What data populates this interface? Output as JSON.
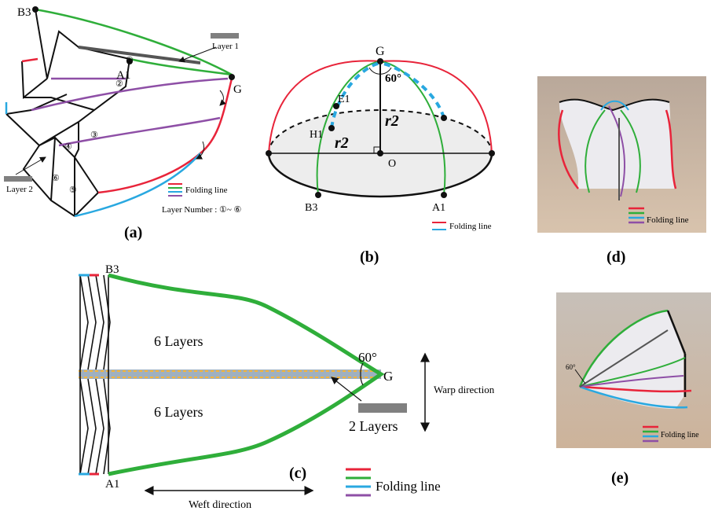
{
  "panels": {
    "a": {
      "caption": "(a)",
      "points": {
        "B3": "B3",
        "A1": "A1",
        "G": "G"
      },
      "layer_callouts": {
        "layer1": "Layer 1",
        "layer2": "Layer 2"
      },
      "layer_marks": [
        "①",
        "②",
        "③",
        "④",
        "⑤",
        "⑥"
      ],
      "legend_label": "Folding line",
      "layer_number": "Layer Number : ①~ ⑥"
    },
    "b": {
      "caption": "(b)",
      "points": {
        "G": "G",
        "E1": "E1",
        "H1": "H1",
        "O": "O",
        "B3": "B3",
        "A1": "A1"
      },
      "angle": "60°",
      "radius_label": "r2",
      "legend_label": "Folding line"
    },
    "c": {
      "caption": "(c)",
      "points": {
        "B3": "B3",
        "A1": "A1",
        "G": "G"
      },
      "top_layers": "6 Layers",
      "bottom_layers": "6 Layers",
      "center_layers": "2 Layers",
      "angle": "60°",
      "warp_direction": "Warp direction",
      "weft_direction": "Weft direction",
      "legend_label": "Folding line"
    },
    "d": {
      "caption": "(d)",
      "legend_label": "Folding line"
    },
    "e": {
      "caption": "(e)",
      "angle": "60°",
      "legend_label": "Folding line"
    }
  },
  "colors": {
    "red": "#e8243a",
    "green": "#2fae3a",
    "blue": "#29a8e0",
    "purple": "#8e4fa6",
    "grey": "#808080",
    "orange": "#f4b43a"
  }
}
